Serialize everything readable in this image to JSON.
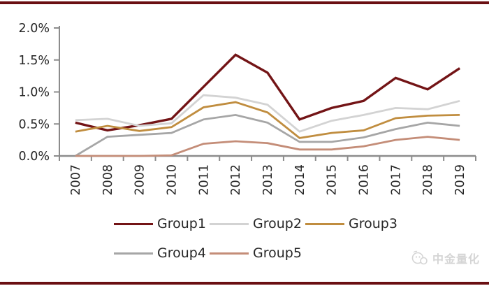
{
  "chart_data": {
    "type": "line",
    "title": "",
    "xlabel": "",
    "ylabel": "",
    "categories": [
      "2007",
      "2008",
      "2009",
      "2010",
      "2011",
      "2012",
      "2013",
      "2014",
      "2015",
      "2016",
      "2017",
      "2018",
      "2019"
    ],
    "y_ticks": [
      "0.0%",
      "0.5%",
      "1.0%",
      "1.5%",
      "2.0%"
    ],
    "ylim": [
      0,
      2.0
    ],
    "grid": false,
    "legend_position": "bottom",
    "series": [
      {
        "name": "Group1",
        "color": "#731416",
        "width": 3.4,
        "values": [
          0.52,
          0.4,
          0.48,
          0.58,
          1.08,
          1.58,
          1.3,
          0.57,
          0.75,
          0.86,
          1.22,
          1.04,
          1.37
        ]
      },
      {
        "name": "Group2",
        "color": "#d3d3d3",
        "width": 2.8,
        "values": [
          0.56,
          0.58,
          0.47,
          0.51,
          0.95,
          0.91,
          0.8,
          0.38,
          0.55,
          0.64,
          0.75,
          0.73,
          0.86
        ]
      },
      {
        "name": "Group3",
        "color": "#c08d3f",
        "width": 2.8,
        "values": [
          0.38,
          0.47,
          0.39,
          0.45,
          0.76,
          0.84,
          0.68,
          0.28,
          0.36,
          0.4,
          0.59,
          0.63,
          0.64
        ]
      },
      {
        "name": "Group4",
        "color": "#a6a6a6",
        "width": 2.8,
        "values": [
          0.0,
          0.3,
          0.33,
          0.36,
          0.57,
          0.64,
          0.52,
          0.22,
          0.22,
          0.29,
          0.42,
          0.52,
          0.47
        ]
      },
      {
        "name": "Group5",
        "color": "#c48d78",
        "width": 2.8,
        "values": [
          0.0,
          0.0,
          0.0,
          0.01,
          0.19,
          0.23,
          0.2,
          0.1,
          0.1,
          0.15,
          0.25,
          0.3,
          0.25
        ]
      }
    ]
  },
  "axis": {
    "color": "#8c8c8c",
    "label_color": "#262626"
  },
  "page": {
    "top_bar_color": "#6a0f12",
    "bottom_bar_color": "#6a0f12",
    "watermark": {
      "text": "中金量化",
      "icon": "chat-bubble-logo-icon",
      "color": "#d5d5d5"
    }
  }
}
